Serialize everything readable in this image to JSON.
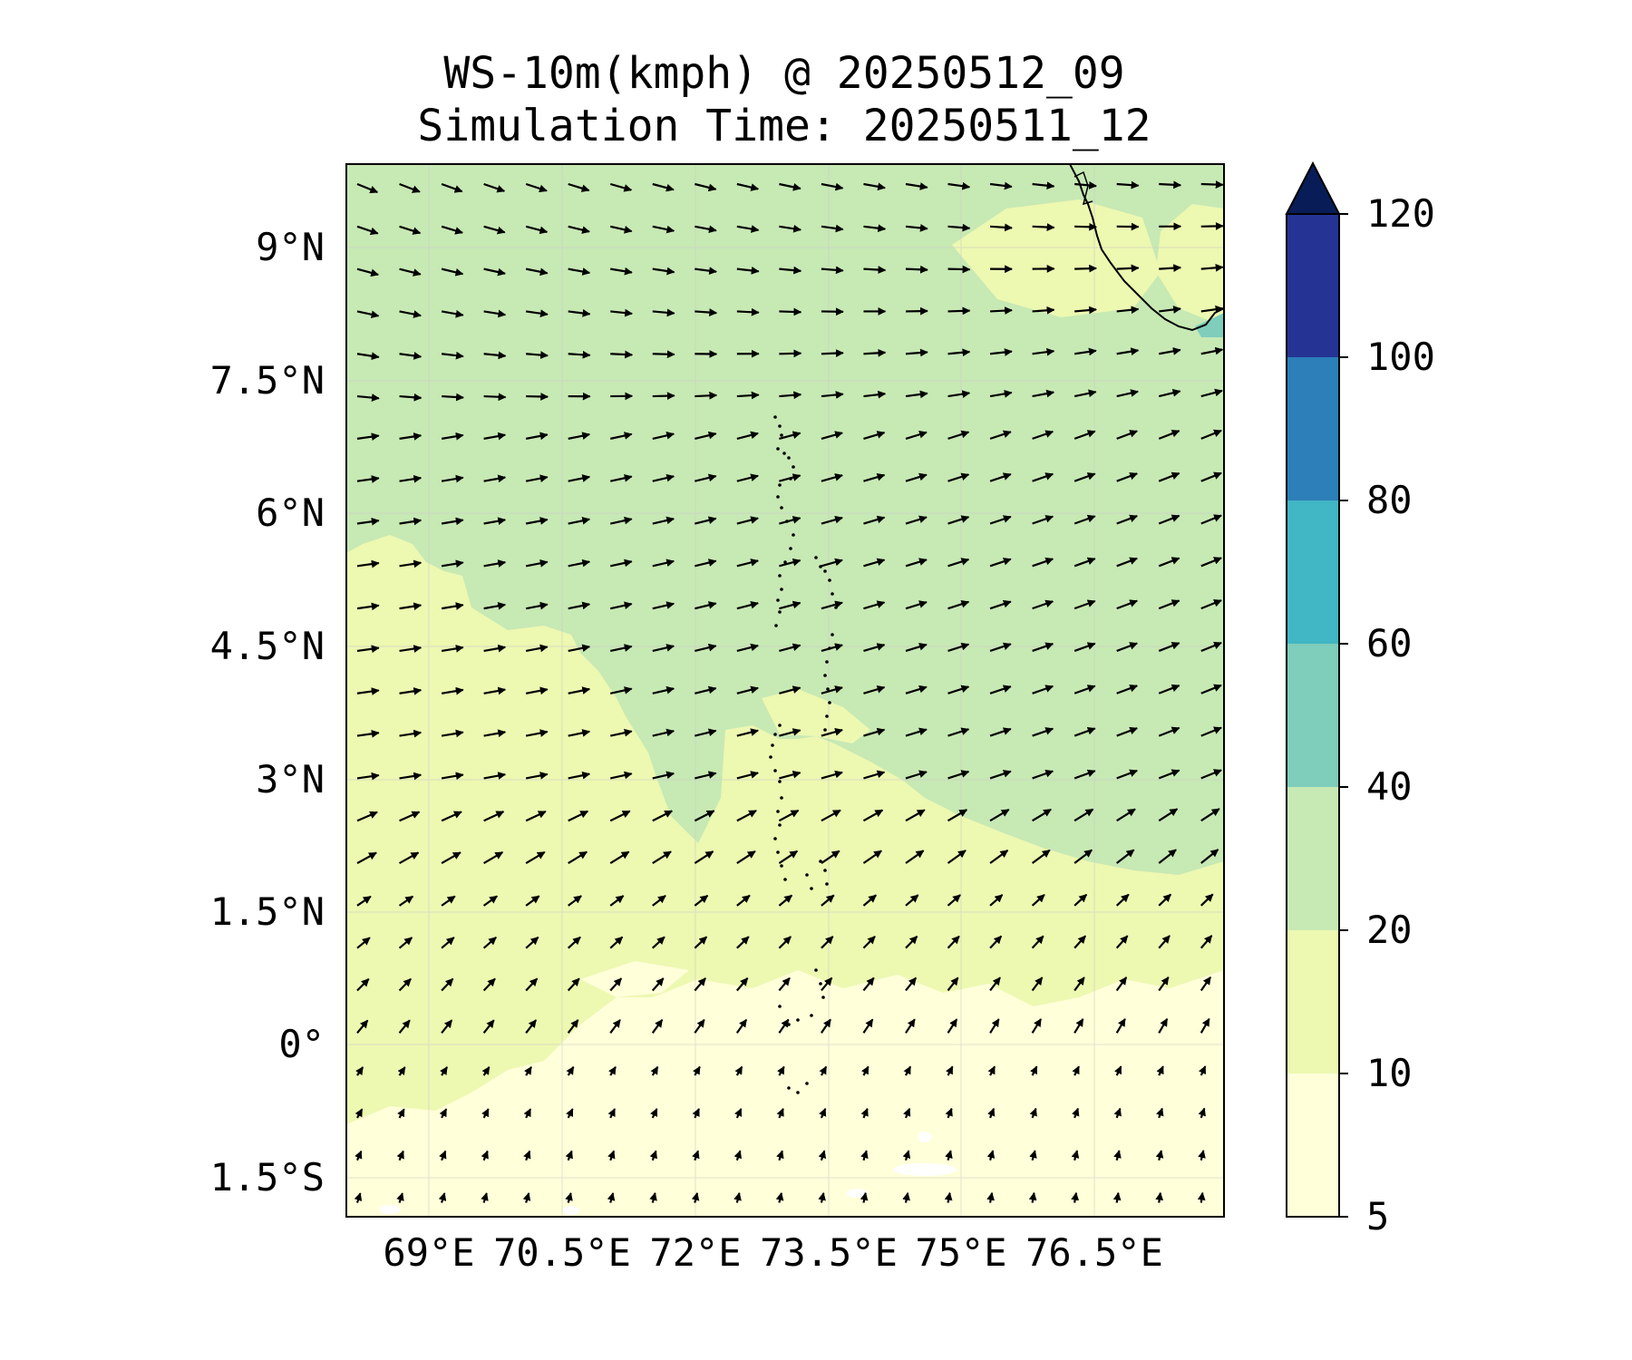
{
  "title": {
    "line1": "WS-10m(kmph) @ 20250512_09",
    "line2": "Simulation Time: 20250511_12"
  },
  "map": {
    "lon_ticks": [
      "69°E",
      "70.5°E",
      "72°E",
      "73.5°E",
      "75°E",
      "76.5°E"
    ],
    "lat_ticks": [
      "9°N",
      "7.5°N",
      "6°N",
      "4.5°N",
      "3°N",
      "1.5°N",
      "0°",
      "1.5°S"
    ],
    "grid": true,
    "colors": {
      "level_5_10": "#ffffd9",
      "level_10_20": "#edf8b1",
      "level_20_40": "#c7e9b4",
      "level_40_60": "#7fcdbb",
      "coast_line": "#000000",
      "arrows": "#000000"
    },
    "vectors": "wind direction arrows: ESE in the north turning E/ENE mid-domain, NE toward the south"
  },
  "colorbar": {
    "labels": [
      "120",
      "100",
      "80",
      "60",
      "40",
      "20",
      "10",
      "5"
    ],
    "levels": [
      5,
      10,
      20,
      40,
      60,
      80,
      100,
      120
    ],
    "extend": "max",
    "colors": [
      "#ffffd9",
      "#edf8b1",
      "#c7e9b4",
      "#7fcdbb",
      "#41b6c4",
      "#2c7fb8",
      "#253494",
      "#081d58"
    ]
  }
}
